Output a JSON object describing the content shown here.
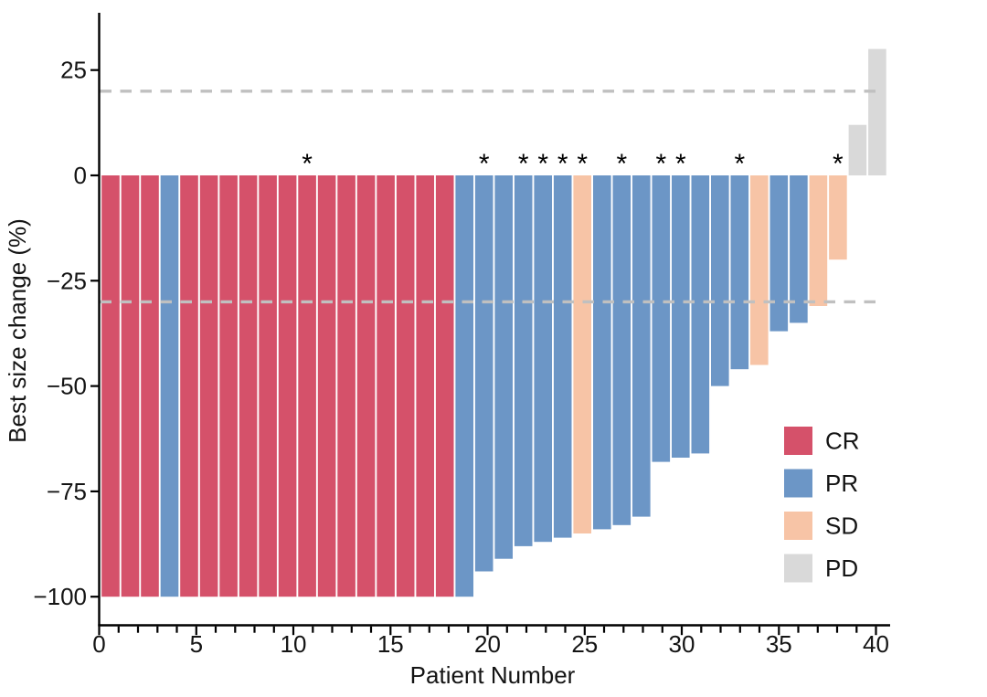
{
  "figure": {
    "kind": "waterfall best-response plot",
    "background": "#FFFFFF"
  },
  "chart_data": {
    "type": "bar",
    "variant": "waterfall",
    "title": "",
    "xlabel": "Patient Number",
    "ylabel": "Best size change (%)",
    "x_tick_values": [
      0,
      5,
      10,
      15,
      20,
      25,
      30,
      35,
      40
    ],
    "x_tick_labels": [
      "0",
      "5",
      "10",
      "15",
      "20",
      "25",
      "30",
      "35",
      "40"
    ],
    "x_minor_tick_every": 1,
    "x_minor_tick_min": 0,
    "x_minor_tick_max": 40,
    "xlim": [
      0,
      40.6
    ],
    "y_tick_values": [
      25,
      0,
      -25,
      -50,
      -75,
      -100
    ],
    "y_tick_labels": [
      "25",
      "0",
      "−25",
      "−50",
      "−75",
      "−100"
    ],
    "ylim": [
      -107,
      39
    ],
    "grid": false,
    "reference_lines": [
      {
        "y": 20,
        "style": "dashed"
      },
      {
        "y": -30,
        "style": "dashed"
      }
    ],
    "star_symbol": "*",
    "legend_position": "inside-bottom-right",
    "legend": [
      {
        "label": "CR",
        "color": "#D5516A"
      },
      {
        "label": "PR",
        "color": "#6C96C6"
      },
      {
        "label": "SD",
        "color": "#F7C4A6"
      },
      {
        "label": "PD",
        "color": "#D9D9D9"
      }
    ],
    "bars": [
      {
        "patient": 1,
        "value": -100,
        "response": "CR",
        "star": false
      },
      {
        "patient": 2,
        "value": -100,
        "response": "CR",
        "star": false
      },
      {
        "patient": 3,
        "value": -100,
        "response": "CR",
        "star": false
      },
      {
        "patient": 4,
        "value": -100,
        "response": "PR",
        "star": false
      },
      {
        "patient": 5,
        "value": -100,
        "response": "CR",
        "star": false
      },
      {
        "patient": 6,
        "value": -100,
        "response": "CR",
        "star": false
      },
      {
        "patient": 7,
        "value": -100,
        "response": "CR",
        "star": false
      },
      {
        "patient": 8,
        "value": -100,
        "response": "CR",
        "star": false
      },
      {
        "patient": 9,
        "value": -100,
        "response": "CR",
        "star": false
      },
      {
        "patient": 10,
        "value": -100,
        "response": "CR",
        "star": false
      },
      {
        "patient": 11,
        "value": -100,
        "response": "CR",
        "star": true
      },
      {
        "patient": 12,
        "value": -100,
        "response": "CR",
        "star": false
      },
      {
        "patient": 13,
        "value": -100,
        "response": "CR",
        "star": false
      },
      {
        "patient": 14,
        "value": -100,
        "response": "CR",
        "star": false
      },
      {
        "patient": 15,
        "value": -100,
        "response": "CR",
        "star": false
      },
      {
        "patient": 16,
        "value": -100,
        "response": "CR",
        "star": false
      },
      {
        "patient": 17,
        "value": -100,
        "response": "CR",
        "star": false
      },
      {
        "patient": 18,
        "value": -100,
        "response": "CR",
        "star": false
      },
      {
        "patient": 19,
        "value": -100,
        "response": "PR",
        "star": false
      },
      {
        "patient": 20,
        "value": -94,
        "response": "PR",
        "star": true
      },
      {
        "patient": 21,
        "value": -91,
        "response": "PR",
        "star": false
      },
      {
        "patient": 22,
        "value": -88,
        "response": "PR",
        "star": true
      },
      {
        "patient": 23,
        "value": -87,
        "response": "PR",
        "star": true
      },
      {
        "patient": 24,
        "value": -86,
        "response": "PR",
        "star": true
      },
      {
        "patient": 25,
        "value": -85,
        "response": "SD",
        "star": true
      },
      {
        "patient": 26,
        "value": -84,
        "response": "PR",
        "star": false
      },
      {
        "patient": 27,
        "value": -83,
        "response": "PR",
        "star": true
      },
      {
        "patient": 28,
        "value": -81,
        "response": "PR",
        "star": false
      },
      {
        "patient": 29,
        "value": -68,
        "response": "PR",
        "star": true
      },
      {
        "patient": 30,
        "value": -67,
        "response": "PR",
        "star": true
      },
      {
        "patient": 31,
        "value": -66,
        "response": "PR",
        "star": false
      },
      {
        "patient": 32,
        "value": -50,
        "response": "PR",
        "star": false
      },
      {
        "patient": 33,
        "value": -46,
        "response": "PR",
        "star": true
      },
      {
        "patient": 34,
        "value": -45,
        "response": "SD",
        "star": false
      },
      {
        "patient": 35,
        "value": -37,
        "response": "PR",
        "star": false
      },
      {
        "patient": 36,
        "value": -35,
        "response": "PR",
        "star": false
      },
      {
        "patient": 37,
        "value": -31,
        "response": "SD",
        "star": false
      },
      {
        "patient": 38,
        "value": -20,
        "response": "SD",
        "star": true
      },
      {
        "patient": 39,
        "value": 12,
        "response": "PD",
        "star": false
      },
      {
        "patient": 40,
        "value": 30,
        "response": "PD",
        "star": false
      }
    ]
  },
  "colors": {
    "background": "#FFFFFF",
    "axis": "#000000",
    "text": "#141414",
    "star": "#000000",
    "dashed_line": "#C0C0C0"
  }
}
